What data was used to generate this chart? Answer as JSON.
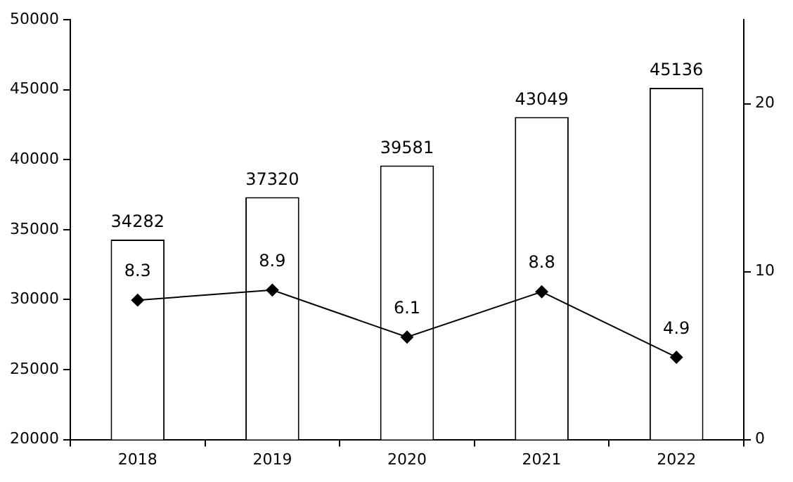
{
  "chart_data": {
    "type": "bar",
    "categories": [
      "2018",
      "2019",
      "2020",
      "2021",
      "2022"
    ],
    "series": [
      {
        "color": "#ffffff",
        "values": [
          34282,
          37320,
          39581,
          43049,
          45136
        ]
      },
      {
        "type": "line",
        "axis": "y2",
        "color": "#000000",
        "values": [
          8.3,
          8.9,
          6.1,
          8.8,
          4.9
        ]
      }
    ],
    "ylim": [
      20000,
      50000
    ],
    "yticks": [
      20000,
      25000,
      30000,
      35000,
      40000,
      45000,
      50000
    ],
    "y2lim": [
      0,
      25
    ],
    "y2ticks": [
      0,
      10,
      20
    ],
    "data_labels": true,
    "marker": "diamond",
    "grid": false,
    "legend": false
  }
}
